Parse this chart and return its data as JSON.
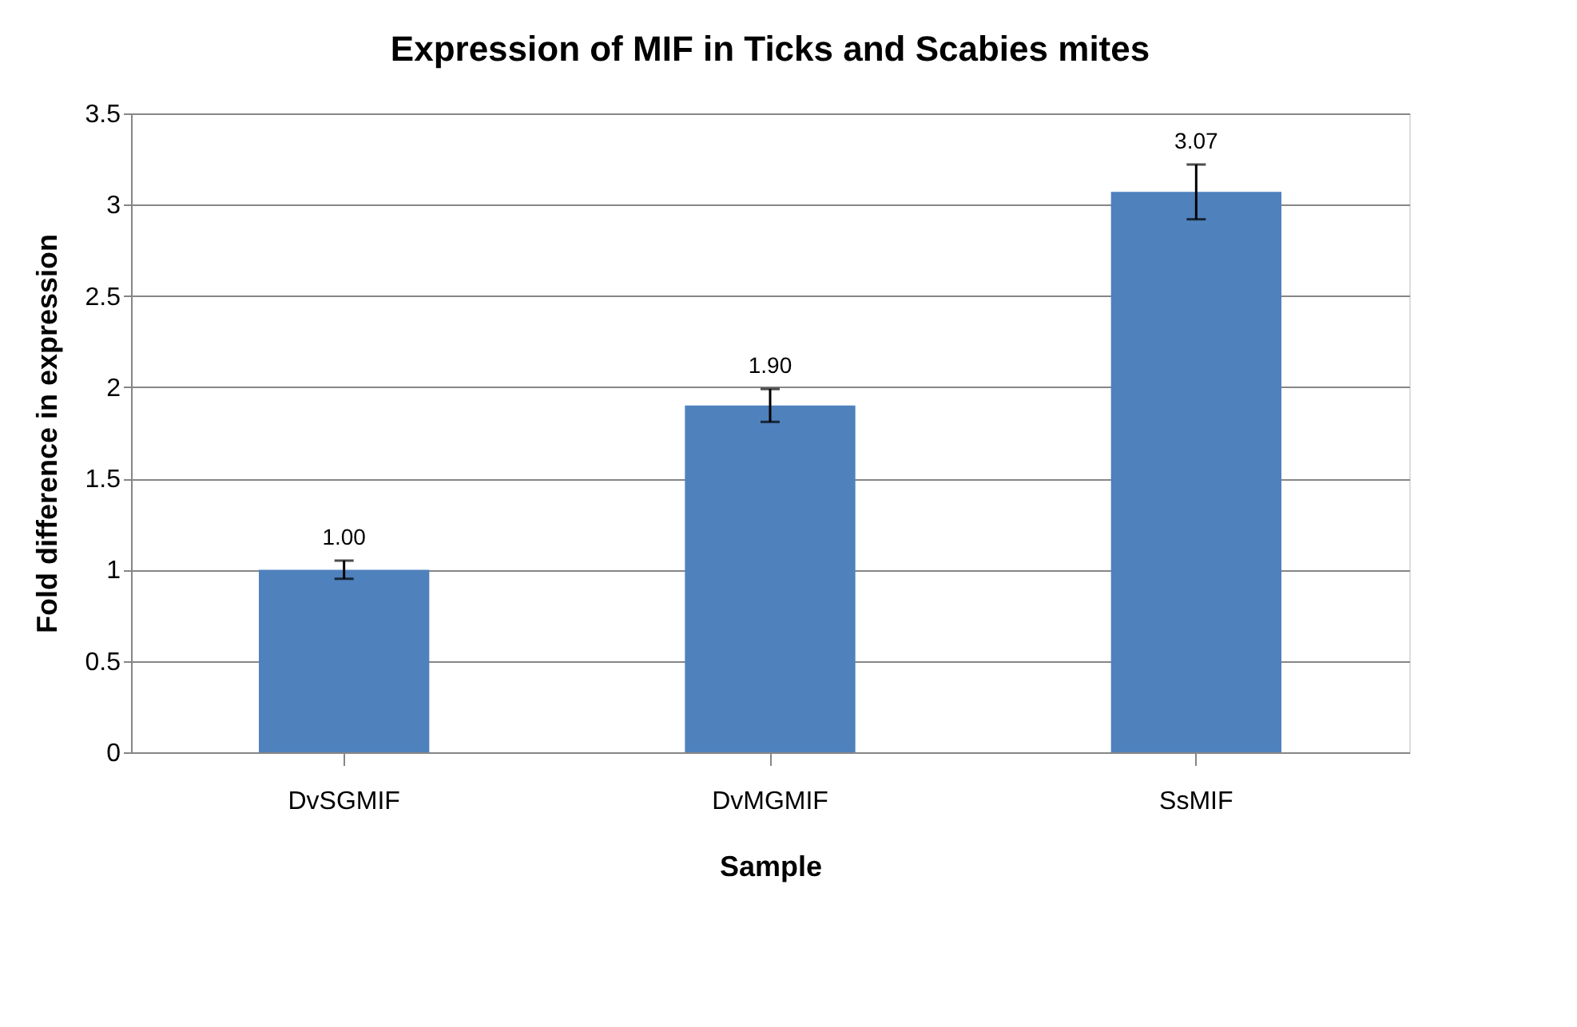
{
  "chart_data": {
    "type": "bar",
    "title": "Expression of MIF in Ticks and Scabies mites",
    "xlabel": "Sample",
    "ylabel": "Fold difference in expression",
    "categories": [
      "DvSGMIF",
      "DvMGMIF",
      "SsMIF"
    ],
    "values": [
      1.0,
      1.9,
      3.07
    ],
    "errors": [
      0.05,
      0.09,
      0.15
    ],
    "value_labels": [
      "1.00",
      "1.90",
      "3.07"
    ],
    "color": "#4f81bd",
    "ylim": [
      0,
      3.5
    ],
    "yticks": [
      0,
      0.5,
      1,
      1.5,
      2,
      2.5,
      3,
      3.5
    ],
    "grid": "y"
  }
}
